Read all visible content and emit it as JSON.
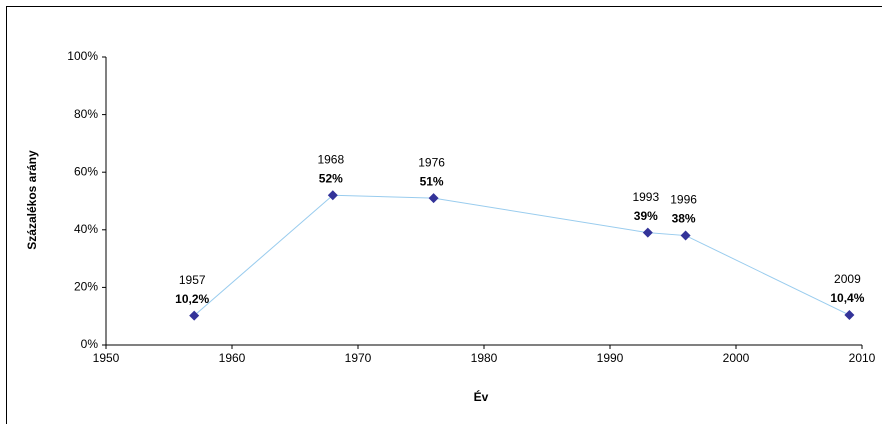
{
  "chart_data": {
    "type": "line",
    "x_label": "Év",
    "y_label": "Százalékos arány",
    "x": [
      1957,
      1968,
      1976,
      1993,
      1996,
      2009
    ],
    "series": [
      {
        "color": "#99ccee",
        "marker_color": "#333399",
        "values": [
          10.2,
          52,
          51,
          39,
          38,
          10.4
        ],
        "value_labels": [
          "10,2%",
          "52%",
          "51%",
          "39%",
          "38%",
          "10,4%"
        ]
      }
    ],
    "xlim": [
      1950,
      2010
    ],
    "xticks": [
      1950,
      1960,
      1970,
      1980,
      1990,
      2000,
      2010
    ],
    "ylim": [
      0,
      100
    ],
    "yticks": [
      {
        "value": 0,
        "label": "0%"
      },
      {
        "value": 20,
        "label": "20%"
      },
      {
        "value": 40,
        "label": "40%"
      },
      {
        "value": 60,
        "label": "60%"
      },
      {
        "value": 80,
        "label": "80%"
      },
      {
        "value": 100,
        "label": "100%"
      }
    ]
  }
}
